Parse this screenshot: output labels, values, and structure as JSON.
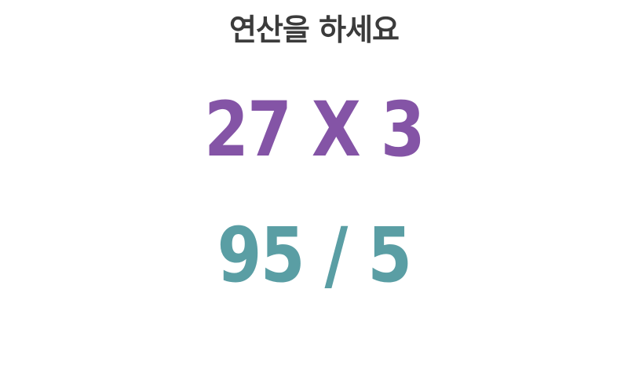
{
  "title": "연산을 하세요",
  "problems": [
    {
      "text": "27 X 3",
      "color": "#8454a6"
    },
    {
      "text": "95 / 5",
      "color": "#5a9ea4"
    }
  ],
  "colors": {
    "background": "#ffffff",
    "title": "#3b3b3b"
  }
}
